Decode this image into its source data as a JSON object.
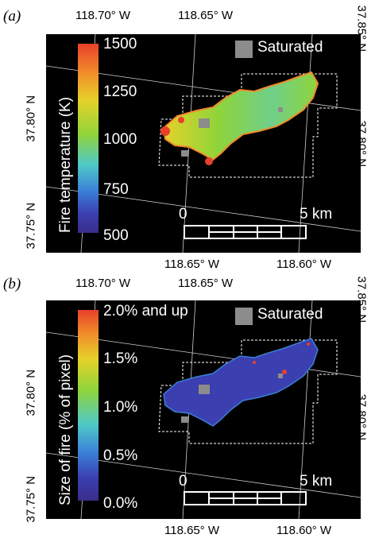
{
  "panels": [
    {
      "letter": "(a)",
      "top_lon": [
        "118.70° W",
        "118.65° W"
      ],
      "bottom_lon": [
        "118.65° W",
        "118.60° W"
      ],
      "left_lat": [
        "37.80° N",
        "37.75° N"
      ],
      "right_lat": [
        "37.85° N",
        "37.80° N"
      ],
      "legend_title": "Fire temperature (K)",
      "ticks": [
        "1500",
        "1250",
        "1000",
        "750",
        "500"
      ],
      "saturated_label": "Saturated",
      "scale": {
        "start": "0",
        "end": "5 km"
      },
      "fire_style": "temperature"
    },
    {
      "letter": "(b)",
      "top_lon": [
        "118.70° W",
        "118.65° W"
      ],
      "bottom_lon": [
        "118.65° W",
        "118.60° W"
      ],
      "left_lat": [
        "37.80° N",
        "37.75° N"
      ],
      "right_lat": [
        "37.85° N",
        "37.80° N"
      ],
      "legend_title": "Size of fire (% of pixel)",
      "ticks": [
        "2.0% and up",
        "1.5%",
        "1.0%",
        "0.5%",
        "0.0%"
      ],
      "saturated_label": "Saturated",
      "scale": {
        "start": "0",
        "end": "5 km"
      },
      "fire_style": "size"
    }
  ],
  "colors": {
    "map_background": "#000000",
    "saturated": "#8c8c8c",
    "colorbar": [
      "#e8412a",
      "#f08a2a",
      "#e6d22a",
      "#8fd43a",
      "#4fc9c8",
      "#3a7fd8",
      "#3b3fb0",
      "#3a2d8a"
    ]
  }
}
